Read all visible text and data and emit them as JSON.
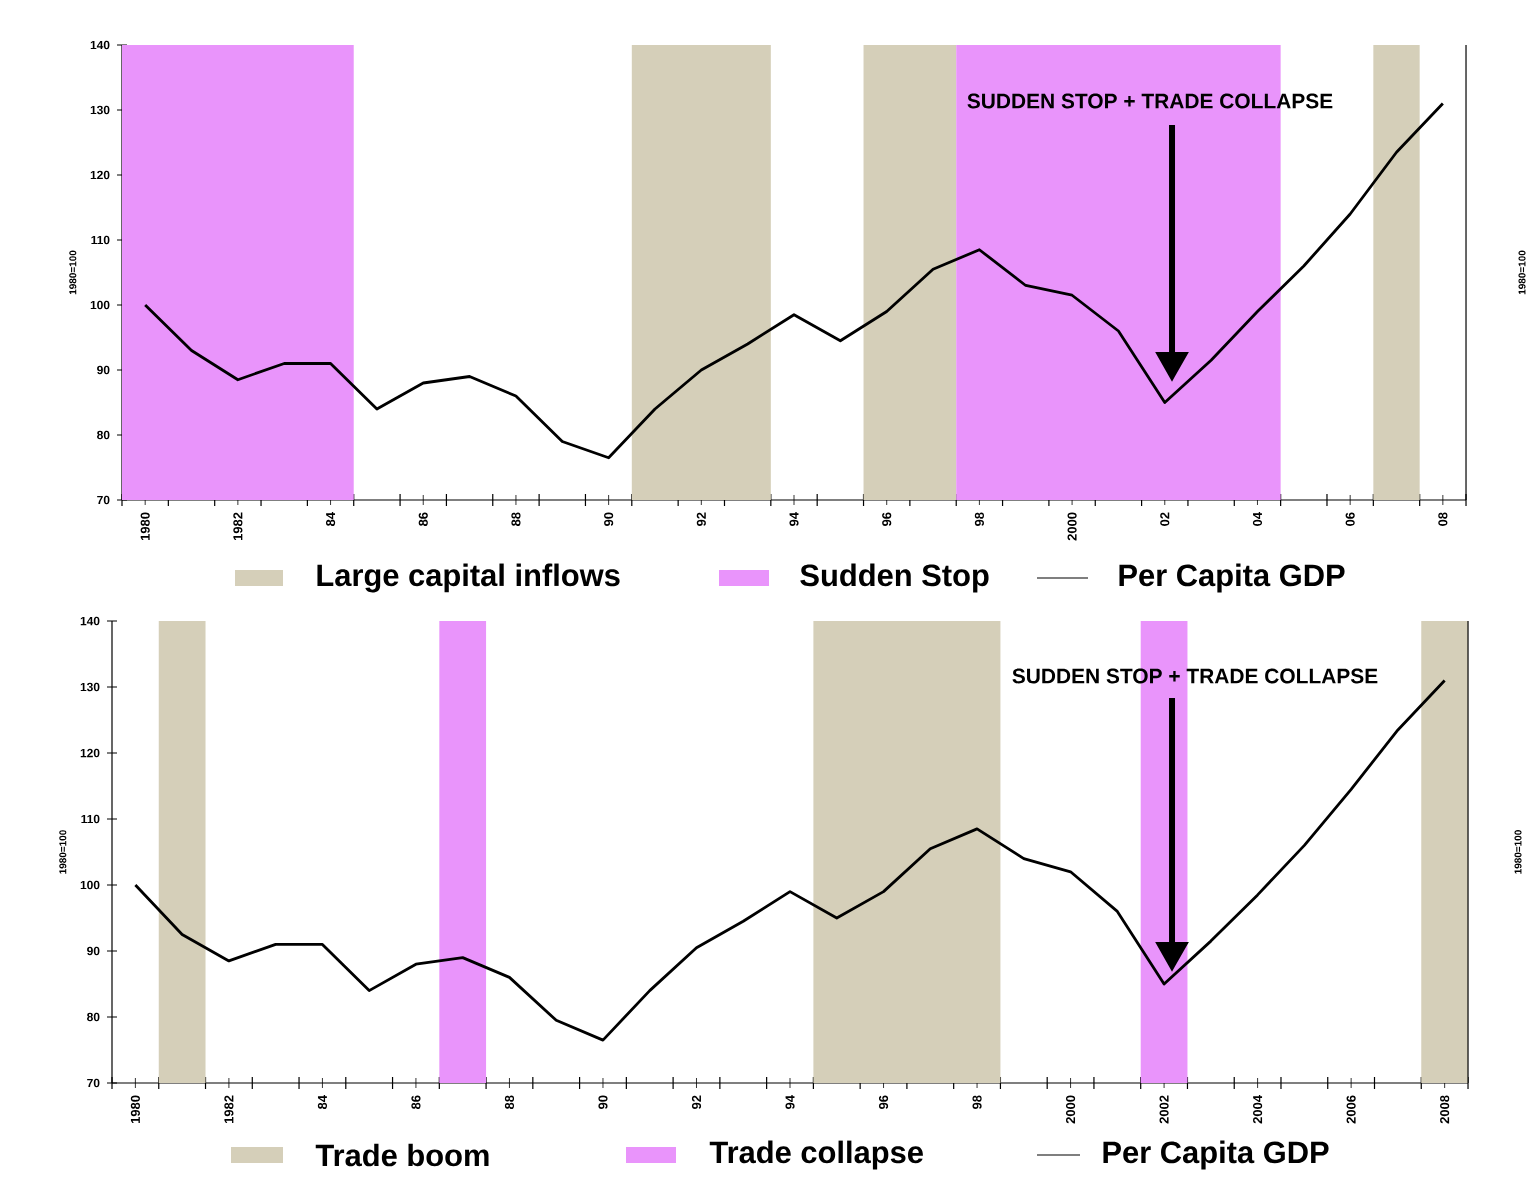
{
  "chart_data": [
    {
      "type": "line",
      "ylabel": "1980=100",
      "y2label": "1980=100",
      "x": [
        1980,
        1981,
        1982,
        1983,
        1984,
        1985,
        1986,
        1987,
        1988,
        1989,
        1990,
        1991,
        1992,
        1993,
        1994,
        1995,
        1996,
        1997,
        1998,
        1999,
        2000,
        2001,
        2002,
        2003,
        2004,
        2005,
        2006,
        2007,
        2008
      ],
      "series": [
        {
          "name": "Per Capita GDP",
          "color": "#000000",
          "values": [
            100,
            93,
            88.5,
            91,
            91,
            84,
            88,
            89,
            86,
            79,
            76.5,
            84,
            90,
            94,
            98.5,
            94.5,
            99,
            105.5,
            108.5,
            103,
            101.5,
            96,
            85,
            91.5,
            99,
            106,
            114,
            123.5,
            131
          ]
        }
      ],
      "xlim": [
        1979.5,
        2008.5
      ],
      "xticks": [
        {
          "value": 1980,
          "label": "1980"
        },
        {
          "value": 1982,
          "label": "1982"
        },
        {
          "value": 1984,
          "label": "84"
        },
        {
          "value": 1986,
          "label": "86"
        },
        {
          "value": 1988,
          "label": "88"
        },
        {
          "value": 1990,
          "label": "90"
        },
        {
          "value": 1992,
          "label": "92"
        },
        {
          "value": 1994,
          "label": "94"
        },
        {
          "value": 1996,
          "label": "96"
        },
        {
          "value": 1998,
          "label": "98"
        },
        {
          "value": 2000,
          "label": "2000"
        },
        {
          "value": 2002,
          "label": "02"
        },
        {
          "value": 2004,
          "label": "04"
        },
        {
          "value": 2006,
          "label": "06"
        },
        {
          "value": 2008,
          "label": "08"
        }
      ],
      "ylim": [
        70,
        140
      ],
      "yticks": [
        70,
        80,
        90,
        100,
        110,
        120,
        130,
        140
      ],
      "bands": [
        {
          "axis": "x",
          "from": 1990.5,
          "to": 1993.5,
          "label": "Large capital inflows",
          "color": "#d5cfb9"
        },
        {
          "axis": "x",
          "from": 1979.5,
          "to": 1984.5,
          "label": "Sudden Stop",
          "color": "#e994fb"
        },
        {
          "axis": "x",
          "from": 1995.5,
          "to": 1997.5,
          "color": "#d5cfb9"
        },
        {
          "axis": "x",
          "from": 1997.5,
          "to": 2004.5,
          "color": "#e994fb"
        },
        {
          "axis": "x",
          "from": 2006.5,
          "to": 2007.5,
          "color": "#d5cfb9"
        }
      ],
      "annotations": [
        "SUDDEN STOP + TRADE COLLAPSE"
      ],
      "legend": "bottom"
    },
    {
      "type": "line",
      "ylabel": "1980=100",
      "y2label": "1980=100",
      "x": [
        1980,
        1981,
        1982,
        1983,
        1984,
        1985,
        1986,
        1987,
        1988,
        1989,
        1990,
        1991,
        1992,
        1993,
        1994,
        1995,
        1996,
        1997,
        1998,
        1999,
        2000,
        2001,
        2002,
        2003,
        2004,
        2005,
        2006,
        2007,
        2008
      ],
      "series": [
        {
          "name": "Per Capita GDP",
          "color": "#000000",
          "values": [
            100,
            92.5,
            88.5,
            91,
            91,
            84,
            88,
            89,
            86,
            79.5,
            76.5,
            84,
            90.5,
            94.5,
            99,
            95,
            99,
            105.5,
            108.5,
            104,
            102,
            96,
            85,
            91.5,
            98.5,
            106,
            114.5,
            123.5,
            131
          ]
        }
      ],
      "xlim": [
        1979.5,
        2008.5
      ],
      "xticks": [
        {
          "value": 1980,
          "label": "1980"
        },
        {
          "value": 1982,
          "label": "1982"
        },
        {
          "value": 1984,
          "label": "84"
        },
        {
          "value": 1986,
          "label": "86"
        },
        {
          "value": 1988,
          "label": "88"
        },
        {
          "value": 1990,
          "label": "90"
        },
        {
          "value": 1992,
          "label": "92"
        },
        {
          "value": 1994,
          "label": "94"
        },
        {
          "value": 1996,
          "label": "96"
        },
        {
          "value": 1998,
          "label": "98"
        },
        {
          "value": 2000,
          "label": "2000"
        },
        {
          "value": 2002,
          "label": "2002"
        },
        {
          "value": 2004,
          "label": "2004"
        },
        {
          "value": 2006,
          "label": "2006"
        },
        {
          "value": 2008,
          "label": "2008"
        }
      ],
      "ylim": [
        70,
        140
      ],
      "yticks": [
        70,
        80,
        90,
        100,
        110,
        120,
        130,
        140
      ],
      "bands": [
        {
          "axis": "x",
          "from": 1980.5,
          "to": 1981.5,
          "label": "Trade boom",
          "color": "#d5cfb9"
        },
        {
          "axis": "x",
          "from": 1986.5,
          "to": 1987.5,
          "label": "Trade collapse",
          "color": "#e994fb"
        },
        {
          "axis": "x",
          "from": 1994.5,
          "to": 1998.5,
          "color": "#d5cfb9"
        },
        {
          "axis": "x",
          "from": 2001.5,
          "to": 2002.5,
          "color": "#e994fb"
        },
        {
          "axis": "x",
          "from": 2007.5,
          "to": 2008.5,
          "color": "#d5cfb9"
        }
      ],
      "annotations": [
        "SUDDEN STOP + TRADE COLLAPSE"
      ],
      "legend": "bottom"
    }
  ]
}
